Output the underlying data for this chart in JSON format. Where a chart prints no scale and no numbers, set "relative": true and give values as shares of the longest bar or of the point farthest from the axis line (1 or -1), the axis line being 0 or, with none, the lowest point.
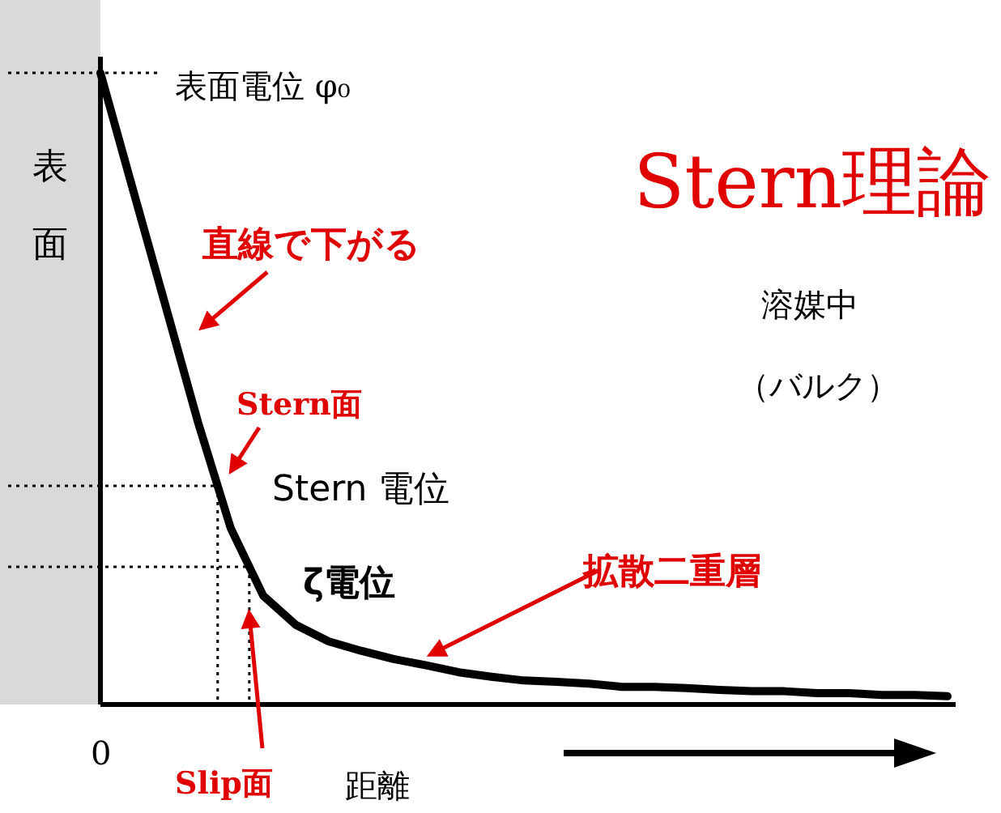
{
  "chart_data": {
    "type": "line",
    "title": "Stern理論",
    "xlabel": "距離",
    "relative": true,
    "categories": [
      null,
      null,
      null,
      null,
      null,
      null,
      null,
      null,
      null,
      null,
      null,
      null,
      null,
      null,
      null,
      null,
      null,
      null,
      null,
      null,
      null,
      null,
      null,
      null,
      null,
      null,
      null
    ],
    "values": [
      1,
      0.815,
      0.631,
      0.446,
      0.279,
      0.172,
      0.126,
      0.1,
      0.085,
      0.072,
      0.062,
      0.051,
      0.044,
      0.038,
      0.036,
      0.033,
      0.028,
      0.028,
      0.026,
      0.023,
      0.021,
      0.021,
      0.018,
      0.018,
      0.015,
      0.015,
      0.013
    ],
    "color": "#000000",
    "line_style": "solid",
    "ref_lines": [
      {
        "axis": "y",
        "value": 1,
        "label": "表面電位 φ₀",
        "line_style": "dotted"
      },
      {
        "axis": "y",
        "value": 0.346,
        "label": "Stern 電位",
        "line_style": "dotted"
      },
      {
        "axis": "y",
        "value": 0.218,
        "label": "ζ電位",
        "line_style": "dotted"
      }
    ],
    "annotations": [
      "直線で下がる",
      "Stern面",
      "Slip面",
      "拡散二重層",
      "溶媒中",
      "（バルク）",
      "0",
      "表面"
    ]
  }
}
